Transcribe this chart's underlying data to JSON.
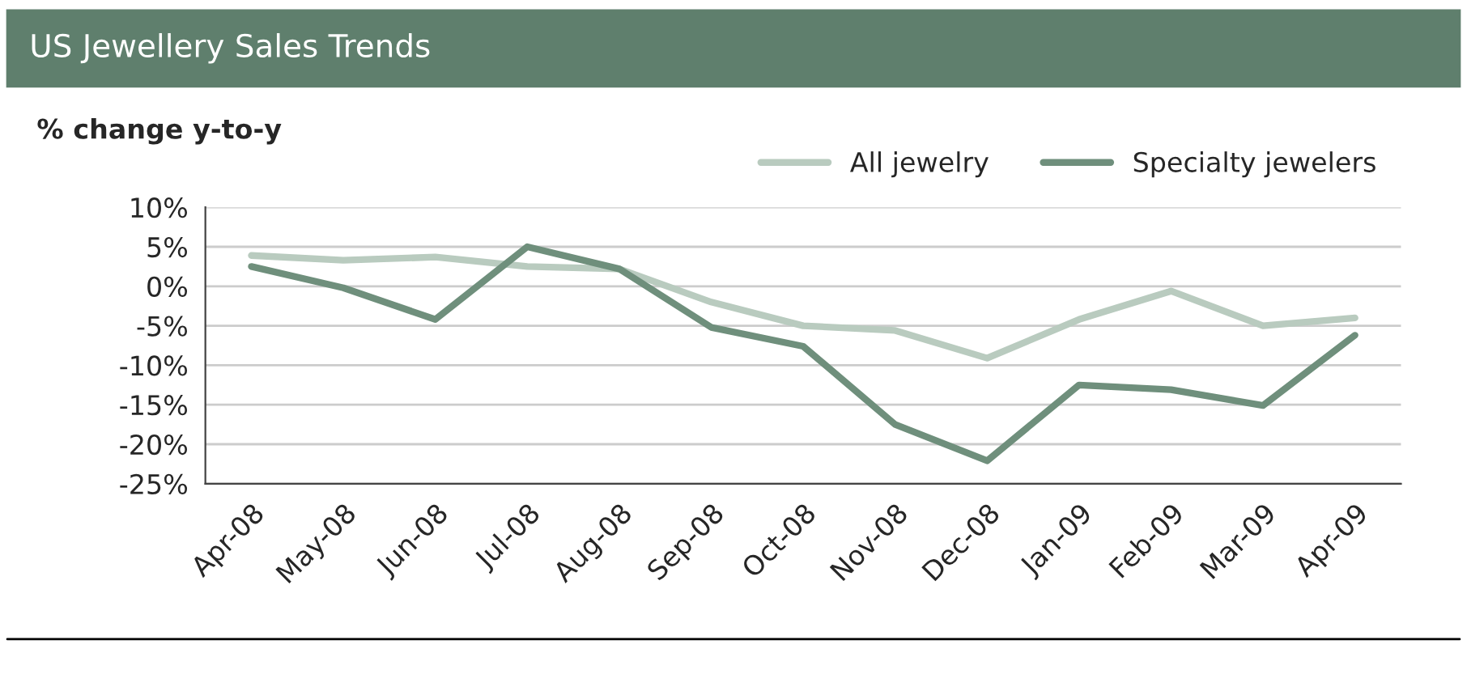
{
  "chart_data": {
    "type": "line",
    "title": "US Jewellery Sales Trends",
    "ylabel": "% change y-to-y",
    "categories": [
      "Apr-08",
      "May-08",
      "Jun-08",
      "Jul-08",
      "Aug-08",
      "Sep-08",
      "Oct-08",
      "Nov-08",
      "Dec-08",
      "Jan-09",
      "Feb-09",
      "Mar-09",
      "Apr-09"
    ],
    "series": [
      {
        "name": "All jewelry",
        "color": "#b9cbbf",
        "values": [
          3.9,
          3.3,
          3.7,
          2.5,
          2.2,
          -2,
          -5,
          -5.6,
          -9.1,
          -4.2,
          -0.6,
          -5,
          -4
        ]
      },
      {
        "name": "Specialty jewelers",
        "color": "#6f8f7c",
        "values": [
          2.5,
          -0.2,
          -4.2,
          5,
          2.2,
          -5.2,
          -7.6,
          -17.5,
          -22.1,
          -12.5,
          -13.1,
          -15.1,
          -6.2
        ]
      }
    ],
    "ylim": [
      -25,
      10
    ],
    "yticks": [
      {
        "value": -25,
        "label": "-25%"
      },
      {
        "value": -20,
        "label": "-20%"
      },
      {
        "value": -15,
        "label": "-15%"
      },
      {
        "value": -10,
        "label": "-10%"
      },
      {
        "value": -5,
        "label": "-5%"
      },
      {
        "value": 0,
        "label": "0%"
      },
      {
        "value": 5,
        "label": "5%"
      },
      {
        "value": 10,
        "label": "10%"
      }
    ],
    "grid": "y",
    "legend": "top right",
    "marker": "none",
    "line_style": "solid"
  }
}
